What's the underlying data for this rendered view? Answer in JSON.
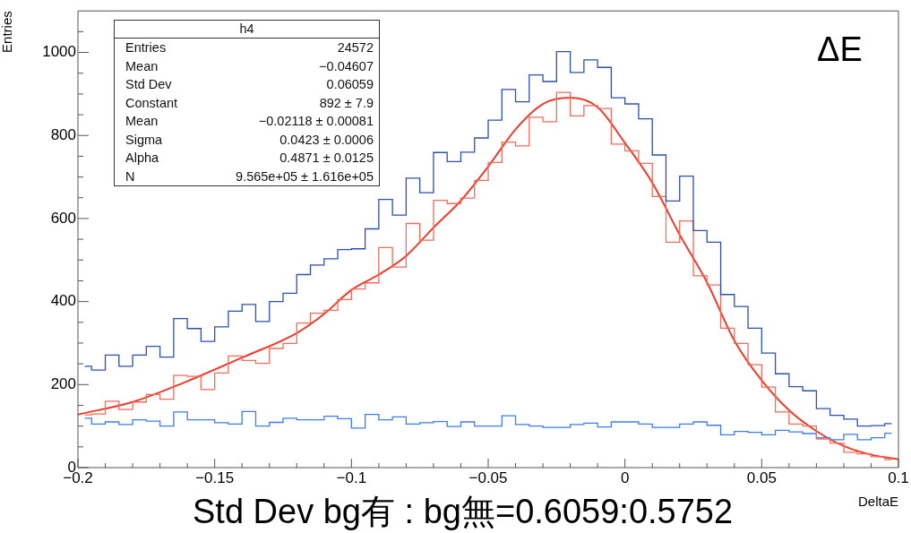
{
  "chart_data": {
    "type": "step",
    "xlabel": "DeltaE",
    "ylabel": "Entries",
    "x": [
      -0.1975,
      -0.1925,
      -0.1875,
      -0.1825,
      -0.1775,
      -0.1725,
      -0.1675,
      -0.1625,
      -0.1575,
      -0.1525,
      -0.1475,
      -0.1425,
      -0.1375,
      -0.1325,
      -0.1275,
      -0.1225,
      -0.1175,
      -0.1125,
      -0.1075,
      -0.1025,
      -0.0975,
      -0.0925,
      -0.0875,
      -0.0825,
      -0.0775,
      -0.0725,
      -0.0675,
      -0.0625,
      -0.0575,
      -0.0525,
      -0.0475,
      -0.0425,
      -0.0375,
      -0.0325,
      -0.0275,
      -0.0225,
      -0.0175,
      -0.0125,
      -0.0075,
      -0.0025,
      0.0025,
      0.0075,
      0.0125,
      0.0175,
      0.0225,
      0.0275,
      0.0325,
      0.0375,
      0.0425,
      0.0475,
      0.0525,
      0.0575,
      0.0625,
      0.0675,
      0.0725,
      0.0775,
      0.0825,
      0.0875,
      0.0925,
      0.0975
    ],
    "series": [
      {
        "color": "#2f4fb0",
        "values": [
          244,
          235,
          271,
          244,
          271,
          292,
          266,
          359,
          335,
          304,
          339,
          377,
          393,
          352,
          400,
          420,
          465,
          488,
          503,
          525,
          527,
          575,
          646,
          608,
          697,
          662,
          759,
          737,
          760,
          794,
          837,
          911,
          881,
          946,
          930,
          1002,
          952,
          982,
          964,
          891,
          876,
          840,
          753,
          642,
          702,
          571,
          543,
          417,
          388,
          336,
          276,
          226,
          195,
          185,
          142,
          126,
          117,
          100,
          101,
          106
        ]
      },
      {
        "color": "#f26b5b",
        "values": [
          127,
          129,
          160,
          140,
          158,
          176,
          165,
          222,
          220,
          188,
          228,
          269,
          258,
          251,
          287,
          299,
          348,
          372,
          379,
          405,
          430,
          445,
          530,
          483,
          588,
          548,
          644,
          636,
          649,
          692,
          735,
          784,
          775,
          844,
          833,
          904,
          847,
          872,
          865,
          779,
          763,
          733,
          653,
          543,
          594,
          462,
          440,
          336,
          299,
          248,
          194,
          134,
          105,
          100,
          69,
          59,
          37,
          33,
          26,
          19
        ]
      },
      {
        "color": "#3d7cf2",
        "values": [
          119,
          105,
          110,
          104,
          115,
          112,
          100,
          134,
          115,
          115,
          108,
          105,
          135,
          100,
          109,
          119,
          115,
          115,
          124,
          118,
          95,
          128,
          115,
          122,
          105,
          108,
          111,
          99,
          110,
          100,
          100,
          125,
          104,
          100,
          97,
          97,
          104,
          107,
          98,
          110,
          110,
          105,
          97,
          97,
          105,
          110,
          102,
          79,
          87,
          85,
          79,
          90,
          86,
          82,
          72,
          67,
          80,
          67,
          72,
          83
        ]
      },
      {
        "type": "line",
        "color": "#ee3b2a",
        "x": [
          -0.2,
          -0.18,
          -0.16,
          -0.14,
          -0.12,
          -0.11,
          -0.1,
          -0.09,
          -0.08,
          -0.07,
          -0.06,
          -0.05,
          -0.04,
          -0.03,
          -0.02,
          -0.01,
          0,
          0.01,
          0.02,
          0.03,
          0.04,
          0.05,
          0.06,
          0.07,
          0.08,
          0.09,
          0.1
        ],
        "values": [
          128,
          158,
          208,
          265,
          324,
          370,
          428,
          465,
          510,
          578,
          643,
          725,
          815,
          876,
          891,
          868,
          782,
          686,
          561,
          446,
          306,
          210,
          138,
          88,
          52,
          31,
          20
        ]
      }
    ],
    "xlim": [
      -0.2,
      0.1
    ],
    "xticks": [
      -0.2,
      {
        "value": -0.19,
        "label": null
      },
      {
        "value": -0.18,
        "label": null
      },
      {
        "value": -0.17,
        "label": null
      },
      {
        "value": -0.16,
        "label": null
      },
      -0.15,
      {
        "value": -0.14,
        "label": null
      },
      {
        "value": -0.13,
        "label": null
      },
      {
        "value": -0.12,
        "label": null
      },
      {
        "value": -0.11,
        "label": null
      },
      -0.1,
      {
        "value": -0.09,
        "label": null
      },
      {
        "value": -0.08,
        "label": null
      },
      {
        "value": -0.07,
        "label": null
      },
      {
        "value": -0.06,
        "label": null
      },
      -0.05,
      {
        "value": -0.04,
        "label": null
      },
      {
        "value": -0.03,
        "label": null
      },
      {
        "value": -0.02,
        "label": null
      },
      {
        "value": -0.01,
        "label": null
      },
      0,
      {
        "value": 0.01,
        "label": null
      },
      {
        "value": 0.02,
        "label": null
      },
      {
        "value": 0.03,
        "label": null
      },
      {
        "value": 0.04,
        "label": null
      },
      0.05,
      {
        "value": 0.06,
        "label": null
      },
      {
        "value": 0.07,
        "label": null
      },
      {
        "value": 0.08,
        "label": null
      },
      {
        "value": 0.09,
        "label": null
      },
      0.1
    ],
    "ylim": [
      0,
      1100
    ],
    "yticks": [
      0,
      {
        "value": 50,
        "label": null
      },
      {
        "value": 100,
        "label": null
      },
      {
        "value": 150,
        "label": null
      },
      200,
      {
        "value": 250,
        "label": null
      },
      {
        "value": 300,
        "label": null
      },
      {
        "value": 350,
        "label": null
      },
      400,
      {
        "value": 450,
        "label": null
      },
      {
        "value": 500,
        "label": null
      },
      {
        "value": 550,
        "label": null
      },
      600,
      {
        "value": 650,
        "label": null
      },
      {
        "value": 700,
        "label": null
      },
      {
        "value": 750,
        "label": null
      },
      800,
      {
        "value": 850,
        "label": null
      },
      {
        "value": 900,
        "label": null
      },
      {
        "value": 950,
        "label": null
      },
      1000,
      {
        "value": 1050,
        "label": null
      }
    ],
    "annotations": [
      "h4",
      "Entries",
      "24572",
      "Mean",
      "−0.04607",
      "Std Dev",
      "0.06059",
      "Constant",
      "892 ± 7.9",
      "Mean",
      "−0.02118 ± 0.00081",
      "Sigma",
      "0.0423 ± 0.0006",
      "Alpha",
      "0.4871 ± 0.0125",
      "N",
      "9.565e+05 ± 1.616e+05",
      "ΔE",
      "Std Dev bg有 : bg無=0.6059:0.5752"
    ]
  }
}
